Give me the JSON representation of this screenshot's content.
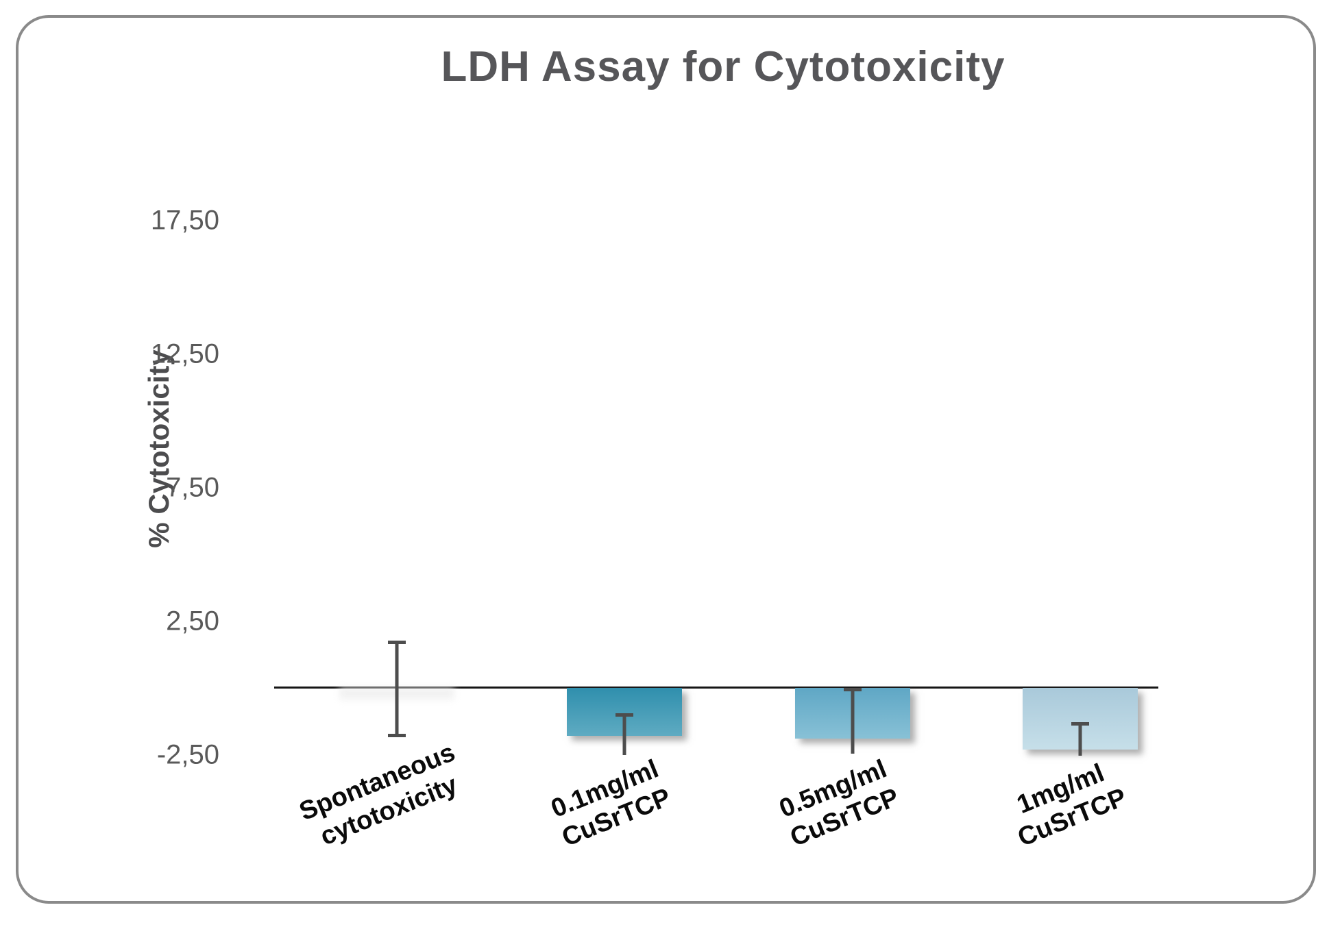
{
  "chart_data": {
    "type": "bar",
    "title": "LDH Assay for Cytotoxicity",
    "ylabel": "% Cytotoxicity",
    "xlabel": "",
    "grid": false,
    "legend": null,
    "decimal_style": "comma",
    "ylim": [
      -3.5,
      19.5
    ],
    "yticks": [
      {
        "value": 17.5,
        "label": "17,50"
      },
      {
        "value": 12.5,
        "label": "12,50"
      },
      {
        "value": 7.5,
        "label": "7,50"
      },
      {
        "value": 2.5,
        "label": "2,50"
      },
      {
        "value": -2.5,
        "label": "-2,50"
      }
    ],
    "categories": [
      "Spontaneous cytotoxicity",
      "0.1mg/ml CuSrTCP",
      "0.5mg/ml CuSrTCP",
      "1mg/ml CuSrTCP"
    ],
    "category_label_lines": [
      [
        "Spontaneous",
        "cytotoxicity"
      ],
      [
        "0.1mg/ml",
        "CuSrTCP"
      ],
      [
        "0.5mg/ml",
        "CuSrTCP"
      ],
      [
        "1mg/ml",
        "CuSrTCP"
      ]
    ],
    "values": [
      -0.45,
      -1.8,
      -1.9,
      -2.3
    ],
    "error_bars": [
      {
        "from": 1.72,
        "to": -1.77,
        "caps": [
          "top",
          "bottom"
        ]
      },
      {
        "from": -1.0,
        "to": -2.51,
        "caps": [
          "top"
        ]
      },
      {
        "from": -0.05,
        "to": -2.46,
        "caps": [
          "top"
        ]
      },
      {
        "from": -1.33,
        "to": -2.54,
        "caps": [
          "top"
        ]
      }
    ],
    "bar_colors": [
      {
        "top": "#ededed",
        "bottom": "#f4f4f4",
        "faint": true
      },
      {
        "top": "#2f8fad",
        "bottom": "#5fabc2",
        "faint": false
      },
      {
        "top": "#5fa7c5",
        "bottom": "#88c1d6",
        "faint": false
      },
      {
        "top": "#a9c9da",
        "bottom": "#c6dfe9",
        "faint": false
      }
    ],
    "axis_color": "#161616",
    "error_bar_color": "#4d4d4d",
    "title_color": "#565659",
    "tick_color": "#595959"
  }
}
